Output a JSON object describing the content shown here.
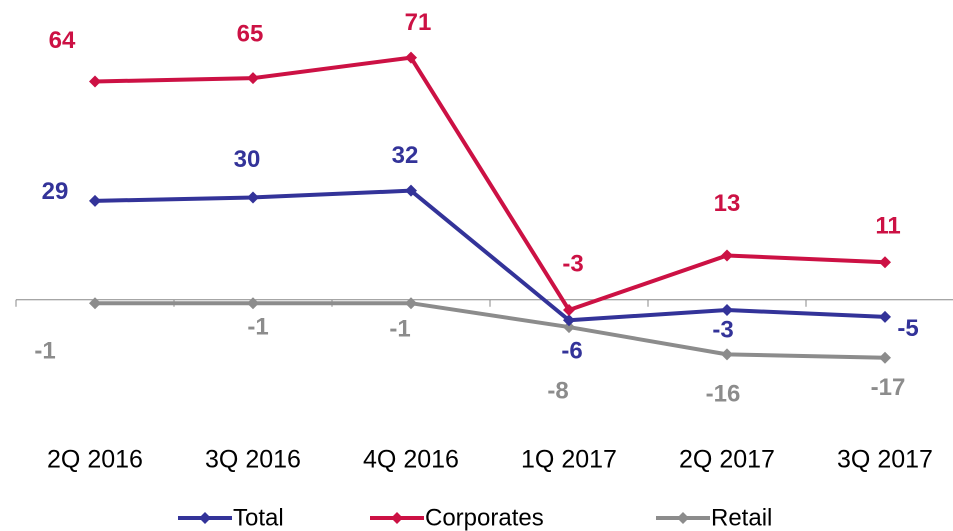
{
  "chart_data": {
    "type": "line",
    "categories": [
      "2Q 2016",
      "3Q 2016",
      "4Q 2016",
      "1Q 2017",
      "2Q 2017",
      "3Q 2017"
    ],
    "series": [
      {
        "name": "Total",
        "color": "#333399",
        "values": [
          29,
          30,
          32,
          -6,
          -3,
          -5
        ]
      },
      {
        "name": "Corporates",
        "color": "#cc1144",
        "values": [
          64,
          65,
          71,
          -3,
          13,
          11
        ]
      },
      {
        "name": "Retail",
        "color": "#8c8c8c",
        "values": [
          -1,
          -1,
          -1,
          -8,
          -16,
          -17
        ]
      }
    ],
    "ylim": [
      -20,
      75
    ],
    "legend": "bottom"
  }
}
